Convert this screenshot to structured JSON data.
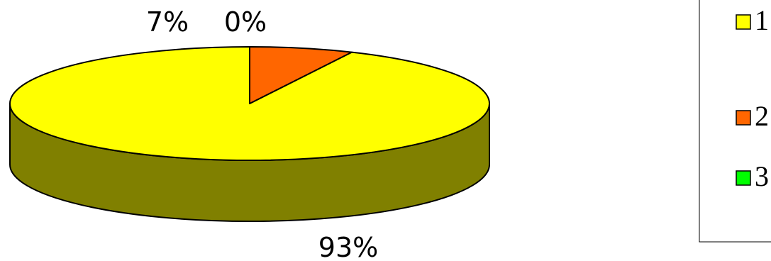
{
  "chart_data": {
    "type": "pie",
    "style": "3d",
    "title": "",
    "categories": [
      "1",
      "2",
      "3"
    ],
    "values": [
      93,
      7,
      0
    ],
    "data_labels": [
      "93%",
      "7%",
      "0%"
    ],
    "colors": [
      "#ffff00",
      "#ff6600",
      "#00ff00"
    ],
    "side_colors": [
      "#808000",
      "#993300",
      "#009900"
    ],
    "legend": {
      "position": "right",
      "entries": [
        "1",
        "2",
        "3"
      ]
    }
  }
}
